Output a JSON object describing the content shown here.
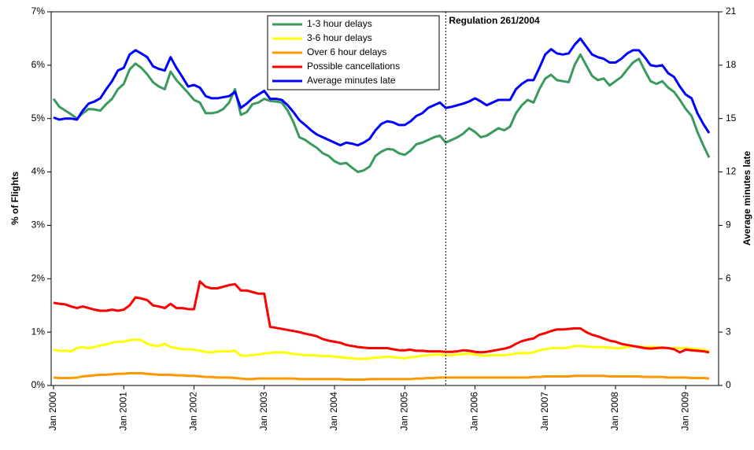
{
  "chart_data": {
    "type": "line",
    "categories": [
      "Jan 2000",
      null,
      null,
      null,
      null,
      null,
      null,
      null,
      null,
      null,
      null,
      null,
      "Jan 2001",
      null,
      null,
      null,
      null,
      null,
      null,
      null,
      null,
      null,
      null,
      null,
      "Jan 2002",
      null,
      null,
      null,
      null,
      null,
      null,
      null,
      null,
      null,
      null,
      null,
      "Jan 2003",
      null,
      null,
      null,
      null,
      null,
      null,
      null,
      null,
      null,
      null,
      null,
      "Jan 2004",
      null,
      null,
      null,
      null,
      null,
      null,
      null,
      null,
      null,
      null,
      null,
      "Jan 2005",
      null,
      null,
      null,
      null,
      null,
      null,
      null,
      null,
      null,
      null,
      null,
      "Jan 2006",
      null,
      null,
      null,
      null,
      null,
      null,
      null,
      null,
      null,
      null,
      null,
      "Jan 2007",
      null,
      null,
      null,
      null,
      null,
      null,
      null,
      null,
      null,
      null,
      null,
      "Jan 2008",
      null,
      null,
      null,
      null,
      null,
      null,
      null,
      null,
      null,
      null,
      null,
      "Jan 2009",
      null,
      null,
      null,
      null
    ],
    "series": [
      {
        "name": "1-3 hour delays",
        "color": "#3a9a5c",
        "values": [
          5.37,
          5.22,
          5.15,
          5.08,
          5.0,
          5.1,
          5.18,
          5.17,
          5.15,
          5.27,
          5.37,
          5.55,
          5.65,
          5.92,
          6.03,
          5.95,
          5.83,
          5.68,
          5.6,
          5.55,
          5.88,
          5.72,
          5.6,
          5.48,
          5.35,
          5.3,
          5.1,
          5.1,
          5.12,
          5.18,
          5.3,
          5.55,
          5.07,
          5.12,
          5.27,
          5.3,
          5.37,
          5.33,
          5.32,
          5.3,
          5.15,
          4.93,
          4.65,
          4.6,
          4.52,
          4.45,
          4.35,
          4.3,
          4.2,
          4.15,
          4.17,
          4.08,
          4.0,
          4.03,
          4.1,
          4.3,
          4.38,
          4.43,
          4.42,
          4.35,
          4.32,
          4.4,
          4.52,
          4.55,
          4.6,
          4.65,
          4.68,
          4.55,
          4.6,
          4.65,
          4.72,
          4.82,
          4.75,
          4.65,
          4.68,
          4.75,
          4.82,
          4.78,
          4.85,
          5.1,
          5.25,
          5.35,
          5.3,
          5.55,
          5.75,
          5.82,
          5.72,
          5.7,
          5.68,
          6.0,
          6.2,
          6.0,
          5.8,
          5.72,
          5.75,
          5.62,
          5.7,
          5.78,
          5.92,
          6.05,
          6.12,
          5.9,
          5.7,
          5.65,
          5.7,
          5.58,
          5.5,
          5.35,
          5.18,
          5.05,
          4.75,
          4.5,
          4.27
        ]
      },
      {
        "name": "3-6 hour delays",
        "color": "#ffff00",
        "values": [
          0.67,
          0.65,
          0.65,
          0.64,
          0.7,
          0.72,
          0.7,
          0.72,
          0.75,
          0.77,
          0.8,
          0.82,
          0.82,
          0.85,
          0.86,
          0.85,
          0.78,
          0.75,
          0.74,
          0.78,
          0.72,
          0.7,
          0.68,
          0.68,
          0.67,
          0.65,
          0.63,
          0.62,
          0.64,
          0.64,
          0.64,
          0.65,
          0.56,
          0.56,
          0.57,
          0.58,
          0.6,
          0.61,
          0.62,
          0.62,
          0.61,
          0.59,
          0.58,
          0.57,
          0.57,
          0.56,
          0.55,
          0.55,
          0.54,
          0.53,
          0.52,
          0.51,
          0.5,
          0.5,
          0.51,
          0.52,
          0.53,
          0.54,
          0.53,
          0.52,
          0.51,
          0.53,
          0.54,
          0.56,
          0.57,
          0.58,
          0.58,
          0.57,
          0.57,
          0.58,
          0.59,
          0.6,
          0.58,
          0.56,
          0.56,
          0.57,
          0.57,
          0.57,
          0.58,
          0.6,
          0.61,
          0.6,
          0.62,
          0.66,
          0.68,
          0.7,
          0.7,
          0.7,
          0.71,
          0.74,
          0.74,
          0.73,
          0.72,
          0.72,
          0.72,
          0.71,
          0.7,
          0.7,
          0.72,
          0.73,
          0.73,
          0.72,
          0.72,
          0.72,
          0.7,
          0.7,
          0.7,
          0.7,
          0.7,
          0.69,
          0.68,
          0.67,
          0.64
        ]
      },
      {
        "name": "Over 6 hour delays",
        "color": "#ff9900",
        "values": [
          0.15,
          0.14,
          0.14,
          0.14,
          0.15,
          0.17,
          0.18,
          0.19,
          0.2,
          0.2,
          0.21,
          0.22,
          0.22,
          0.23,
          0.23,
          0.23,
          0.22,
          0.21,
          0.2,
          0.2,
          0.2,
          0.19,
          0.19,
          0.18,
          0.18,
          0.17,
          0.16,
          0.16,
          0.15,
          0.15,
          0.15,
          0.14,
          0.13,
          0.12,
          0.12,
          0.13,
          0.13,
          0.13,
          0.13,
          0.13,
          0.13,
          0.13,
          0.12,
          0.12,
          0.12,
          0.12,
          0.12,
          0.12,
          0.12,
          0.12,
          0.11,
          0.11,
          0.11,
          0.11,
          0.12,
          0.12,
          0.12,
          0.12,
          0.12,
          0.12,
          0.12,
          0.12,
          0.13,
          0.13,
          0.14,
          0.14,
          0.15,
          0.15,
          0.15,
          0.15,
          0.15,
          0.15,
          0.15,
          0.15,
          0.15,
          0.15,
          0.15,
          0.15,
          0.15,
          0.15,
          0.15,
          0.15,
          0.16,
          0.16,
          0.17,
          0.17,
          0.17,
          0.17,
          0.17,
          0.18,
          0.18,
          0.18,
          0.18,
          0.18,
          0.18,
          0.17,
          0.17,
          0.17,
          0.17,
          0.17,
          0.17,
          0.16,
          0.16,
          0.16,
          0.16,
          0.15,
          0.15,
          0.15,
          0.15,
          0.14,
          0.14,
          0.14,
          0.13
        ]
      },
      {
        "name": "Possible cancellations",
        "color": "#ff0000",
        "values": [
          1.55,
          1.53,
          1.52,
          1.48,
          1.45,
          1.48,
          1.45,
          1.42,
          1.4,
          1.4,
          1.42,
          1.4,
          1.42,
          1.5,
          1.65,
          1.63,
          1.6,
          1.5,
          1.48,
          1.45,
          1.53,
          1.45,
          1.45,
          1.43,
          1.43,
          1.95,
          1.85,
          1.82,
          1.82,
          1.85,
          1.88,
          1.9,
          1.78,
          1.78,
          1.75,
          1.72,
          1.72,
          1.1,
          1.08,
          1.06,
          1.04,
          1.02,
          1.0,
          0.97,
          0.95,
          0.92,
          0.87,
          0.84,
          0.82,
          0.8,
          0.76,
          0.74,
          0.72,
          0.71,
          0.7,
          0.7,
          0.7,
          0.7,
          0.68,
          0.66,
          0.66,
          0.67,
          0.65,
          0.65,
          0.64,
          0.64,
          0.64,
          0.63,
          0.63,
          0.64,
          0.66,
          0.65,
          0.63,
          0.62,
          0.63,
          0.65,
          0.67,
          0.69,
          0.72,
          0.78,
          0.83,
          0.86,
          0.88,
          0.95,
          0.98,
          1.02,
          1.05,
          1.05,
          1.06,
          1.07,
          1.07,
          1.0,
          0.95,
          0.92,
          0.88,
          0.84,
          0.82,
          0.78,
          0.76,
          0.74,
          0.72,
          0.7,
          0.69,
          0.7,
          0.71,
          0.7,
          0.68,
          0.62,
          0.67,
          0.66,
          0.65,
          0.64,
          0.62
        ]
      },
      {
        "name": "Average minutes late",
        "color": "#0000ff",
        "axis": "y2",
        "values": [
          15.06,
          14.94,
          15.0,
          15.0,
          14.94,
          15.45,
          15.84,
          15.96,
          16.14,
          16.65,
          17.1,
          17.7,
          17.85,
          18.6,
          18.84,
          18.66,
          18.45,
          17.94,
          17.79,
          17.7,
          18.45,
          17.85,
          17.34,
          16.8,
          16.89,
          16.74,
          16.26,
          16.14,
          16.14,
          16.2,
          16.26,
          16.5,
          15.6,
          15.84,
          16.14,
          16.35,
          16.56,
          16.11,
          16.11,
          16.05,
          15.75,
          15.36,
          14.91,
          14.64,
          14.34,
          14.1,
          13.95,
          13.8,
          13.65,
          13.5,
          13.65,
          13.59,
          13.5,
          13.65,
          13.86,
          14.34,
          14.7,
          14.85,
          14.79,
          14.64,
          14.64,
          14.85,
          15.15,
          15.3,
          15.6,
          15.75,
          15.9,
          15.6,
          15.66,
          15.75,
          15.84,
          15.96,
          16.14,
          15.96,
          15.75,
          15.9,
          16.05,
          16.05,
          16.05,
          16.65,
          16.95,
          17.16,
          17.16,
          17.85,
          18.6,
          18.9,
          18.66,
          18.6,
          18.66,
          19.14,
          19.5,
          19.05,
          18.6,
          18.45,
          18.36,
          18.15,
          18.15,
          18.36,
          18.66,
          18.84,
          18.84,
          18.45,
          18.0,
          17.94,
          18.0,
          17.55,
          17.34,
          16.8,
          16.35,
          16.14,
          15.3,
          14.7,
          14.19
        ]
      }
    ],
    "ylabel": "% of Flights",
    "y2label": "Average minutes late",
    "ylim": [
      0,
      7
    ],
    "yticks": [
      {
        "value": 0,
        "label": "0%"
      },
      {
        "value": 1,
        "label": "1%"
      },
      {
        "value": 2,
        "label": "2%"
      },
      {
        "value": 3,
        "label": "3%"
      },
      {
        "value": 4,
        "label": "4%"
      },
      {
        "value": 5,
        "label": "5%"
      },
      {
        "value": 6,
        "label": "6%"
      },
      {
        "value": 7,
        "label": "7%"
      }
    ],
    "y2lim": [
      0,
      21
    ],
    "y2ticks": [
      0,
      3,
      6,
      9,
      12,
      15,
      18,
      21
    ],
    "annotation": {
      "text": "Regulation 261/2004",
      "index": 67
    },
    "legend": "top-center"
  }
}
